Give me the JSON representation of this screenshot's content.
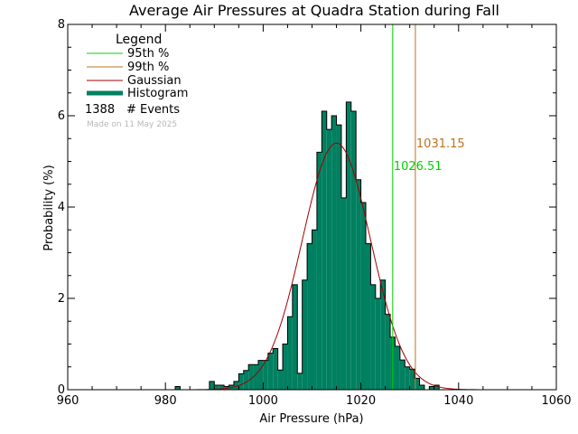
{
  "chart_data": {
    "type": "bar",
    "title": "Average Air Pressures at Quadra Station during Fall",
    "xlabel": "Air Pressure (hPa)",
    "ylabel": "Probability (%)",
    "xlim": [
      960,
      1060
    ],
    "ylim": [
      0,
      8
    ],
    "x_ticks": [
      960,
      980,
      1000,
      1020,
      1040,
      1060
    ],
    "y_ticks": [
      0,
      2,
      4,
      6,
      8
    ],
    "bin_width": 1,
    "histogram": {
      "name": "Histogram",
      "color": "#008060",
      "bins": [
        [
          982,
          0.07
        ],
        [
          989,
          0.18
        ],
        [
          990,
          0.1
        ],
        [
          991,
          0.1
        ],
        [
          992,
          0.07
        ],
        [
          993,
          0.1
        ],
        [
          994,
          0.18
        ],
        [
          995,
          0.35
        ],
        [
          996,
          0.42
        ],
        [
          997,
          0.55
        ],
        [
          998,
          0.55
        ],
        [
          999,
          0.64
        ],
        [
          1000,
          0.64
        ],
        [
          1001,
          0.8
        ],
        [
          1002,
          0.9
        ],
        [
          1003,
          0.43
        ],
        [
          1004,
          1.0
        ],
        [
          1005,
          1.6
        ],
        [
          1006,
          2.3
        ],
        [
          1007,
          0.36
        ],
        [
          1008,
          2.4
        ],
        [
          1009,
          3.2
        ],
        [
          1010,
          3.5
        ],
        [
          1011,
          5.2
        ],
        [
          1012,
          6.1
        ],
        [
          1013,
          5.7
        ],
        [
          1014,
          6.0
        ],
        [
          1015,
          5.8
        ],
        [
          1016,
          4.2
        ],
        [
          1017,
          6.3
        ],
        [
          1018,
          6.1
        ],
        [
          1019,
          4.6
        ],
        [
          1020,
          4.1
        ],
        [
          1021,
          3.2
        ],
        [
          1022,
          2.3
        ],
        [
          1023,
          2.0
        ],
        [
          1024,
          2.4
        ],
        [
          1025,
          1.65
        ],
        [
          1026,
          1.15
        ],
        [
          1027,
          0.95
        ],
        [
          1028,
          0.65
        ],
        [
          1029,
          0.5
        ],
        [
          1030,
          0.45
        ],
        [
          1031,
          0.25
        ],
        [
          1032,
          0.1
        ],
        [
          1034,
          0.07
        ],
        [
          1035,
          0.1
        ]
      ]
    },
    "gaussian": {
      "name": "Gaussian",
      "color": "#a00000",
      "mean": 1015.0,
      "sigma": 7.0,
      "peak": 5.4
    },
    "percentiles": [
      {
        "name": "95th %",
        "value": 1026.51,
        "label": "1026.51",
        "color": "#00d000"
      },
      {
        "name": "99th %",
        "value": 1031.15,
        "label": "1031.15",
        "color": "#c07020"
      }
    ],
    "legend": {
      "title": "Legend",
      "position": "top-left",
      "entries": [
        {
          "label": "95th %",
          "color": "#00d000",
          "kind": "line"
        },
        {
          "label": "99th %",
          "color": "#c07020",
          "kind": "line"
        },
        {
          "label": "Gaussian",
          "color": "#a00000",
          "kind": "line"
        },
        {
          "label": "Histogram",
          "color": "#008060",
          "kind": "bar"
        }
      ],
      "events_count": "1388",
      "events_label": "# Events",
      "made_on": "Made on 11 May 2025"
    }
  }
}
